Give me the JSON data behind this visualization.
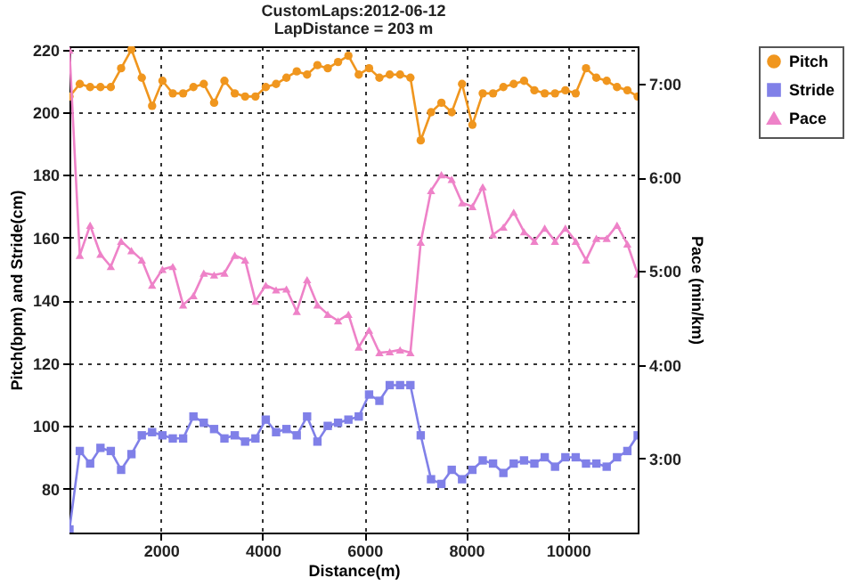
{
  "chart_data": {
    "type": "line",
    "title": "CustomLaps:2012-06-12",
    "subtitle": "LapDistance = 203 m",
    "xlabel": "Distance(m)",
    "ylabel": "Pitch(bpm) and Stride(cm)",
    "y2label": "Pace (min/km)",
    "x": [
      203,
      406,
      609,
      812,
      1015,
      1218,
      1421,
      1624,
      1827,
      2030,
      2233,
      2436,
      2639,
      2842,
      3045,
      3248,
      3451,
      3654,
      3857,
      4060,
      4263,
      4466,
      4669,
      4872,
      5075,
      5278,
      5481,
      5684,
      5887,
      6090,
      6293,
      6496,
      6699,
      6902,
      7105,
      7308,
      7511,
      7714,
      7917,
      8120,
      8323,
      8526,
      8729,
      8932,
      9135,
      9338,
      9541,
      9744,
      9947,
      10150,
      10353,
      10556,
      10759,
      10962,
      11165,
      11368
    ],
    "xlim": [
      203,
      11368
    ],
    "xticks": [
      2000,
      4000,
      6000,
      8000,
      10000
    ],
    "ylim": [
      66,
      221
    ],
    "yticks": [
      80,
      100,
      120,
      140,
      160,
      180,
      200,
      220
    ],
    "y2lim": [
      2.21,
      7.4
    ],
    "y2ticks": [
      {
        "value": 3,
        "label": "3:00"
      },
      {
        "value": 4,
        "label": "4:00"
      },
      {
        "value": 5,
        "label": "5:00"
      },
      {
        "value": 6,
        "label": "6:00"
      },
      {
        "value": 7,
        "label": "7:00"
      }
    ],
    "grid": true,
    "legend": "top right",
    "line_style": "solid",
    "series": [
      {
        "name": "Pitch",
        "color": "#f0961e",
        "marker": "circle",
        "values": [
          205,
          209,
          208,
          208,
          208,
          214,
          220,
          211,
          202,
          210,
          206,
          206,
          208,
          209,
          203,
          210,
          206,
          205,
          205,
          208,
          209,
          211,
          213,
          212,
          215,
          214,
          216,
          218,
          212,
          214,
          211,
          212,
          212,
          211,
          191,
          200,
          203,
          200,
          209,
          196,
          206,
          206,
          208,
          209,
          210,
          207,
          206,
          206,
          207,
          206,
          214,
          211,
          210,
          208,
          207,
          205
        ]
      },
      {
        "name": "Stride",
        "color": "#8080e8",
        "marker": "square",
        "values": [
          67,
          92,
          88,
          93,
          92,
          86,
          91,
          97,
          98,
          97,
          96,
          96,
          103,
          101,
          99,
          96,
          97,
          95,
          96,
          102,
          98,
          99,
          97,
          103,
          95,
          100,
          101,
          102,
          103,
          110,
          108,
          113,
          113,
          113,
          97,
          83,
          81.5,
          86,
          83,
          86,
          89,
          88,
          85,
          88,
          89,
          88,
          90,
          87,
          90,
          90,
          88,
          88,
          87,
          90,
          92,
          97
        ]
      },
      {
        "name": "Pace",
        "color": "#ee82c8",
        "marker": "triangle",
        "axis": "y2",
        "values": [
          7.36,
          5.17,
          5.49,
          5.18,
          5.05,
          5.32,
          5.22,
          5.12,
          4.85,
          5.02,
          5.05,
          4.64,
          4.74,
          4.98,
          4.96,
          4.98,
          5.17,
          5.12,
          4.68,
          4.85,
          4.8,
          4.81,
          4.57,
          4.91,
          4.64,
          4.54,
          4.47,
          4.54,
          4.19,
          4.37,
          4.13,
          4.14,
          4.16,
          4.13,
          5.31,
          5.86,
          6.03,
          5.98,
          5.73,
          5.69,
          5.9,
          5.39,
          5.47,
          5.63,
          5.42,
          5.32,
          5.46,
          5.32,
          5.46,
          5.32,
          5.12,
          5.35,
          5.35,
          5.49,
          5.29,
          4.97
        ]
      }
    ]
  }
}
